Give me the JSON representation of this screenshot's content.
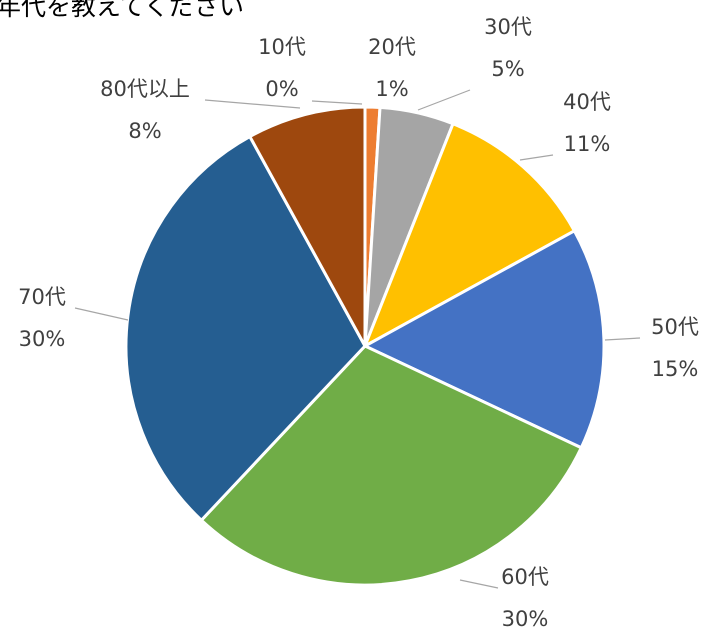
{
  "chart_data": {
    "type": "pie",
    "title": "年代を教えてください",
    "categories": [
      "10代",
      "20代",
      "30代",
      "40代",
      "50代",
      "60代",
      "70代",
      "80代以上"
    ],
    "values": [
      0,
      1,
      5,
      11,
      15,
      30,
      30,
      8
    ],
    "value_labels": [
      "0%",
      "1%",
      "5%",
      "11%",
      "15%",
      "30%",
      "30%",
      "8%"
    ],
    "colors": [
      "#5b9bd5",
      "#ed7d31",
      "#a5a5a5",
      "#ffc000",
      "#4472c4",
      "#70ad47",
      "#255e91",
      "#9e480e"
    ]
  }
}
